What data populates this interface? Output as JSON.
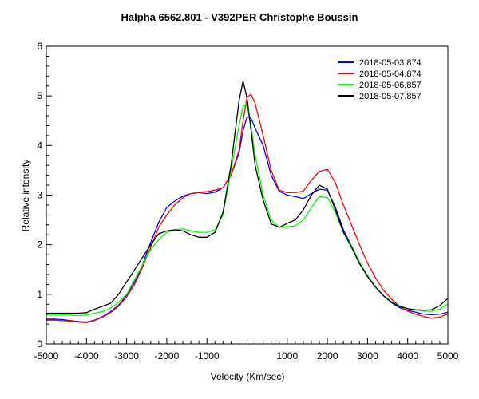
{
  "chart_data": {
    "type": "line",
    "title": "Halpha 6562.801 - V392PER   Christophe Boussin",
    "xlabel": "Velocity (Km/sec)",
    "ylabel": "Relative intensity",
    "xlim": [
      -5000,
      5000
    ],
    "ylim": [
      0,
      6
    ],
    "x_tick_labels": [
      "-5000",
      "-4000",
      "-3000",
      "-2000",
      "-1000",
      "1000",
      "2000",
      "3000",
      "4000",
      "5000"
    ],
    "x_tick_values": [
      -5000,
      -4000,
      -3000,
      -2000,
      -1000,
      1000,
      2000,
      3000,
      4000,
      5000
    ],
    "y_tick_labels": [
      "0",
      "1",
      "2",
      "3",
      "4",
      "5",
      "6"
    ],
    "y_tick_values": [
      0,
      1,
      2,
      3,
      4,
      5,
      6
    ],
    "grid": false,
    "legend_position": "top-right",
    "x": [
      -5000,
      -4800,
      -4600,
      -4400,
      -4200,
      -4000,
      -3800,
      -3600,
      -3400,
      -3200,
      -3000,
      -2800,
      -2600,
      -2400,
      -2200,
      -2000,
      -1800,
      -1600,
      -1400,
      -1200,
      -1000,
      -800,
      -600,
      -400,
      -200,
      -100,
      0,
      100,
      200,
      400,
      600,
      800,
      1000,
      1200,
      1400,
      1600,
      1800,
      2000,
      2200,
      2400,
      2600,
      2800,
      3000,
      3200,
      3400,
      3600,
      3800,
      4000,
      4200,
      4400,
      4600,
      4800,
      5000
    ],
    "series": [
      {
        "name": "2018-05-03.874",
        "color": "#0000ff",
        "values": [
          0.5,
          0.5,
          0.49,
          0.47,
          0.45,
          0.44,
          0.48,
          0.55,
          0.65,
          0.78,
          0.98,
          1.25,
          1.6,
          2.05,
          2.45,
          2.75,
          2.88,
          2.98,
          3.03,
          3.05,
          3.03,
          3.06,
          3.15,
          3.4,
          3.85,
          4.3,
          4.58,
          4.55,
          4.35,
          4.0,
          3.4,
          3.08,
          3.0,
          2.97,
          2.93,
          3.03,
          3.12,
          3.1,
          2.75,
          2.3,
          1.98,
          1.65,
          1.38,
          1.15,
          0.97,
          0.83,
          0.73,
          0.68,
          0.64,
          0.6,
          0.59,
          0.6,
          0.64
        ]
      },
      {
        "name": "2018-05-04.874",
        "color": "#ff0000",
        "values": [
          0.48,
          0.48,
          0.47,
          0.46,
          0.44,
          0.43,
          0.47,
          0.54,
          0.63,
          0.76,
          0.95,
          1.2,
          1.55,
          1.95,
          2.35,
          2.6,
          2.8,
          2.95,
          3.03,
          3.06,
          3.07,
          3.1,
          3.15,
          3.4,
          3.9,
          4.5,
          4.98,
          5.03,
          4.85,
          4.2,
          3.5,
          3.1,
          3.05,
          3.05,
          3.08,
          3.3,
          3.48,
          3.52,
          3.25,
          2.8,
          2.4,
          2.0,
          1.63,
          1.33,
          1.08,
          0.9,
          0.76,
          0.66,
          0.6,
          0.55,
          0.52,
          0.54,
          0.6
        ]
      },
      {
        "name": "2018-05-06.857",
        "color": "#00ff00",
        "values": [
          0.58,
          0.58,
          0.58,
          0.58,
          0.57,
          0.58,
          0.62,
          0.65,
          0.72,
          0.84,
          1.0,
          1.3,
          1.6,
          1.9,
          2.1,
          2.25,
          2.3,
          2.32,
          2.28,
          2.25,
          2.25,
          2.3,
          2.6,
          3.5,
          4.4,
          4.8,
          4.8,
          4.4,
          3.8,
          3.0,
          2.5,
          2.35,
          2.36,
          2.38,
          2.5,
          2.75,
          2.97,
          2.95,
          2.65,
          2.25,
          1.98,
          1.65,
          1.38,
          1.15,
          0.97,
          0.85,
          0.77,
          0.71,
          0.68,
          0.66,
          0.66,
          0.7,
          0.8
        ]
      },
      {
        "name": "2018-05-07.857",
        "color": "#000000",
        "values": [
          0.62,
          0.62,
          0.62,
          0.62,
          0.62,
          0.63,
          0.7,
          0.76,
          0.82,
          1.0,
          1.25,
          1.5,
          1.75,
          2.0,
          2.22,
          2.28,
          2.3,
          2.28,
          2.2,
          2.15,
          2.15,
          2.25,
          2.65,
          3.6,
          4.9,
          5.3,
          4.95,
          4.3,
          3.6,
          2.9,
          2.42,
          2.35,
          2.43,
          2.5,
          2.7,
          3.0,
          3.2,
          3.12,
          2.7,
          2.25,
          1.95,
          1.62,
          1.36,
          1.14,
          0.97,
          0.84,
          0.76,
          0.71,
          0.69,
          0.68,
          0.69,
          0.77,
          0.92
        ]
      }
    ]
  }
}
